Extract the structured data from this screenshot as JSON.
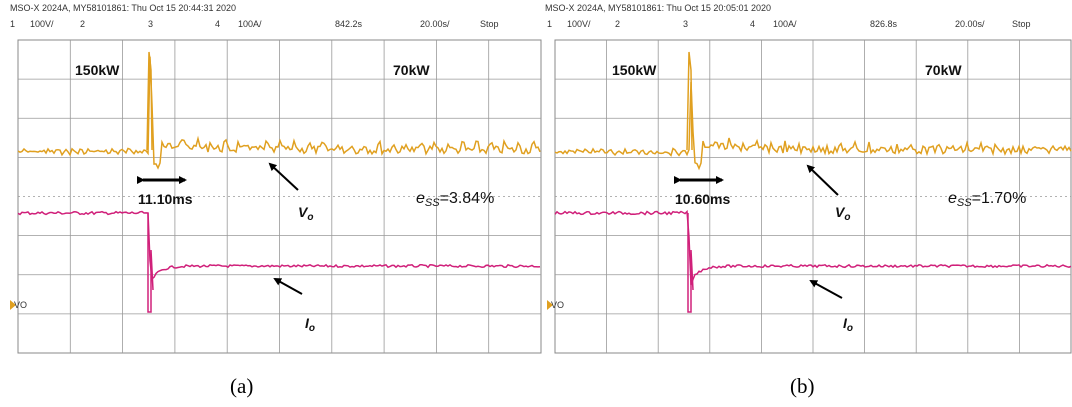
{
  "panels": [
    {
      "header": "MSO-X 2024A, MY58101861: Thu Oct 15 20:44:31 2020",
      "channels": {
        "ch1": "1",
        "ch1_scale": "100V/",
        "ch2": "2",
        "ch3": "3",
        "ch4": "4",
        "ch4_scale": "100A/",
        "time_offset": "842.2s",
        "time_scale": "20.00s/",
        "status": "Stop"
      },
      "ground_label": "VO",
      "labels": {
        "power_before": "150kW",
        "power_after": "70kW",
        "settling_time": "11.10ms",
        "vo_symbol": "V",
        "vo_sub": "o",
        "error_symbol": "e",
        "error_sub": "SS",
        "error_value": "=3.84%",
        "io_symbol": "I",
        "io_sub": "o"
      },
      "caption": "(a)"
    },
    {
      "header": "MSO-X 2024A, MY58101861: Thu Oct 15 20:05:01 2020",
      "channels": {
        "ch1": "1",
        "ch1_scale": "100V/",
        "ch2": "2",
        "ch3": "3",
        "ch4": "4",
        "ch4_scale": "100A/",
        "time_offset": "826.8s",
        "time_scale": "20.00s/",
        "status": "Stop"
      },
      "ground_label": "VO",
      "labels": {
        "power_before": "150kW",
        "power_after": "70kW",
        "settling_time": "10.60ms",
        "vo_symbol": "V",
        "vo_sub": "o",
        "error_symbol": "e",
        "error_sub": "SS",
        "error_value": "=1.70%",
        "io_symbol": "I",
        "io_sub": "o"
      },
      "caption": "(b)"
    }
  ]
}
